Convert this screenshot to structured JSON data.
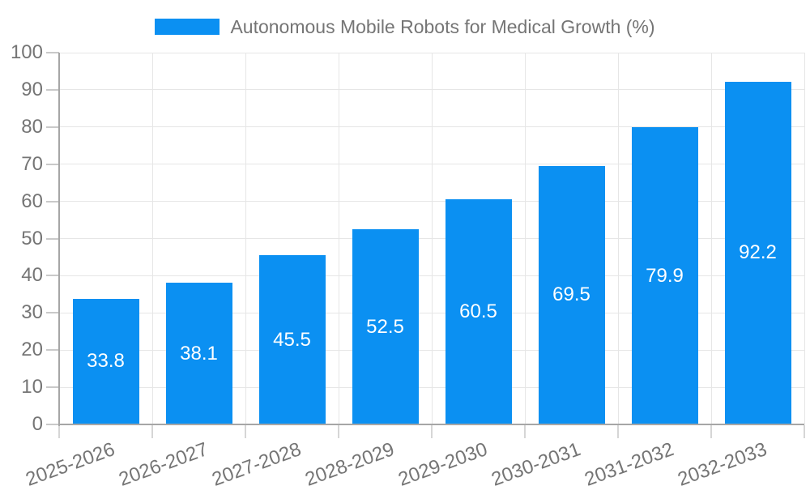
{
  "chart_data": {
    "type": "bar",
    "title": "Autonomous Mobile Robots for Medical Growth (%)",
    "legend": {
      "position": "top",
      "entries": [
        {
          "label": "Autonomous Mobile Robots for Medical Growth (%)"
        }
      ]
    },
    "categories": [
      "2025-2026",
      "2026-2027",
      "2027-2028",
      "2028-2029",
      "2029-2030",
      "2030-2031",
      "2031-2032",
      "2032-2033"
    ],
    "series": [
      {
        "name": "Autonomous Mobile Robots for Medical Growth (%)",
        "values": [
          33.8,
          38.1,
          45.5,
          52.5,
          60.5,
          69.5,
          79.9,
          92.2
        ]
      }
    ],
    "value_labels": [
      "33.8",
      "38.1",
      "45.5",
      "52.5",
      "60.5",
      "69.5",
      "79.9",
      "92.2"
    ],
    "xlabel": "",
    "ylabel": "",
    "ylim": [
      0,
      100
    ],
    "ytick_step": 10,
    "ytick_labels": [
      "0",
      "10",
      "20",
      "30",
      "40",
      "50",
      "60",
      "70",
      "80",
      "90",
      "100"
    ],
    "grid": true,
    "x_label_rotation_deg": -20,
    "colors": {
      "bar": "#0b90f2",
      "grid": "#e6e6e6",
      "axis": "#a6a6a6",
      "tick": "#cccccc",
      "label": "#757575",
      "value_label": "#ffffff",
      "background": "#ffffff"
    }
  }
}
